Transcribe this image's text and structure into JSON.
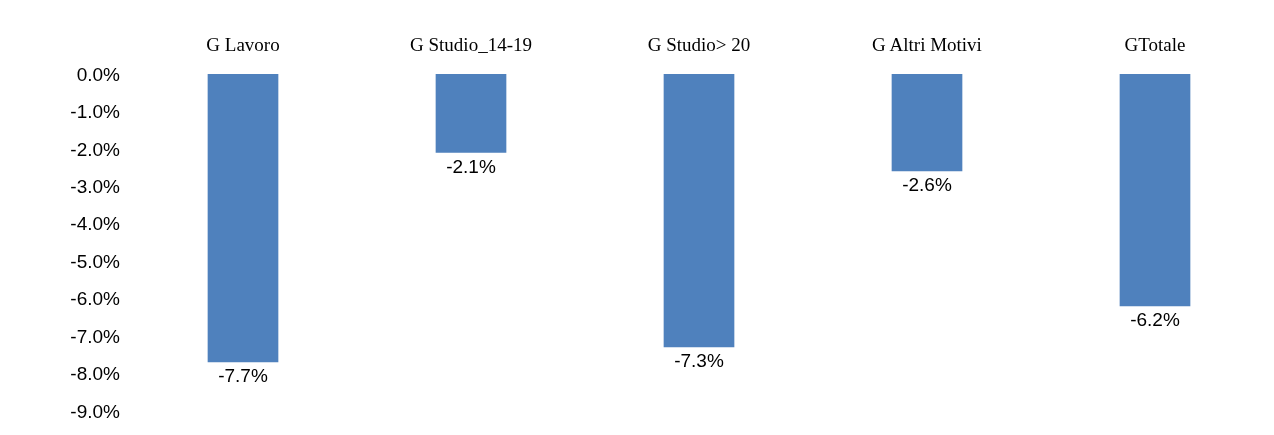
{
  "chart_data": {
    "type": "bar",
    "categories": [
      "G Lavoro",
      "G Studio_14-19",
      "G Studio> 20",
      "G Altri Motivi",
      "GTotale"
    ],
    "values": [
      -7.7,
      -2.1,
      -7.3,
      -2.6,
      -6.2
    ],
    "value_labels": [
      "-7.7%",
      "-2.1%",
      "-7.3%",
      "-2.6%",
      "-6.2%"
    ],
    "color": "#4f81bd",
    "ylim": [
      -9,
      0
    ],
    "yticks": [
      {
        "value": 0,
        "label": "0.0%"
      },
      {
        "value": -1,
        "label": "-1.0%"
      },
      {
        "value": -2,
        "label": "-2.0%"
      },
      {
        "value": -3,
        "label": "-3.0%"
      },
      {
        "value": -4,
        "label": "-4.0%"
      },
      {
        "value": -5,
        "label": "-5.0%"
      },
      {
        "value": -6,
        "label": "-6.0%"
      },
      {
        "value": -7,
        "label": "-7.0%"
      },
      {
        "value": -8,
        "label": "-8.0%"
      },
      {
        "value": -9,
        "label": "-9.0%"
      }
    ],
    "grid": false,
    "legend": false
  }
}
